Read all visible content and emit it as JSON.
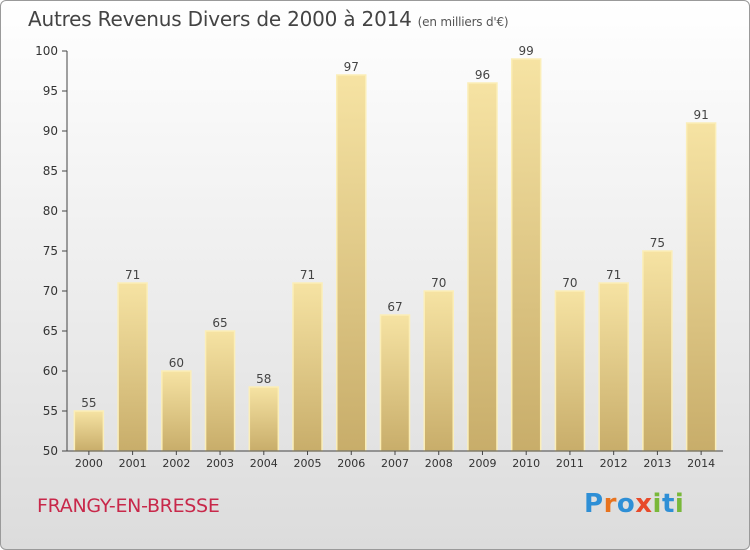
{
  "header": {
    "title": "Autres Revenus Divers de 2000 à 2014",
    "unit": "(en milliers d'€)"
  },
  "footer": {
    "place": "FRANGY-EN-BRESSE",
    "logo": "Proxiti"
  },
  "colors": {
    "bar_top": "#f6e3a3",
    "bar_bottom": "#c8ad6a",
    "bar_edge": "#fbeeb8",
    "place": "#c8284a",
    "axis": "#444444",
    "logo": [
      "#2e8fd6",
      "#e8731e",
      "#2e8fd6",
      "#e84a2a",
      "#79b83a",
      "#2e8fd6",
      "#79b83a"
    ]
  },
  "chart_data": {
    "type": "bar",
    "categories": [
      "2000",
      "2001",
      "2002",
      "2003",
      "2004",
      "2005",
      "2006",
      "2007",
      "2008",
      "2009",
      "2010",
      "2011",
      "2012",
      "2013",
      "2014"
    ],
    "values": [
      55,
      71,
      60,
      65,
      58,
      71,
      97,
      67,
      70,
      96,
      99,
      70,
      71,
      75,
      91
    ],
    "title": "Autres Revenus Divers de 2000 à 2014",
    "subtitle": "(en milliers d'€)",
    "xlabel": "",
    "ylabel": "",
    "ylim": [
      50,
      100
    ],
    "yticks": [
      50,
      55,
      60,
      65,
      70,
      75,
      80,
      85,
      90,
      95,
      100
    ],
    "grid": false,
    "data_labels": true
  }
}
